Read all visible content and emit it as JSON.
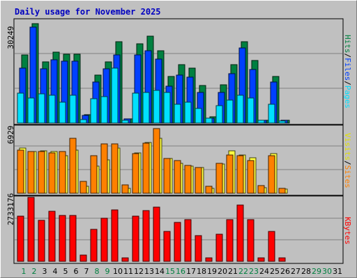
{
  "chart_data": [
    {
      "type": "bar",
      "title": "Daily usage for November 2025",
      "panel": "hits-files-pages",
      "categories": [
        "1",
        "2",
        "3",
        "4",
        "5",
        "6",
        "7",
        "8",
        "9",
        "10",
        "11",
        "12",
        "13",
        "14",
        "15",
        "16",
        "17",
        "18",
        "19",
        "20",
        "21",
        "22",
        "23",
        "24",
        "25",
        "26",
        "27",
        "28",
        "29",
        "30",
        "31"
      ],
      "weekend_days": [
        "1",
        "2",
        "8",
        "9",
        "15",
        "16",
        "22",
        "23",
        "29",
        "30"
      ],
      "ymax_label": "30249",
      "ylim": [
        0,
        30249
      ],
      "side_labels": [
        {
          "text": "Hits",
          "color": "#008040"
        },
        {
          "text": "/",
          "color": "#000000"
        },
        {
          "text": "Files",
          "color": "#0040ff"
        },
        {
          "text": "/",
          "color": "#000000"
        },
        {
          "text": "Pages",
          "color": "#00e0ff"
        }
      ],
      "series": [
        {
          "name": "Hits",
          "color": "#008040",
          "values": [
            20100,
            29300,
            18000,
            20900,
            20300,
            20300,
            2500,
            14100,
            18000,
            24000,
            1300,
            23200,
            25600,
            21200,
            13600,
            17100,
            16100,
            11100,
            1800,
            11300,
            17200,
            24000,
            18400,
            900,
            13600,
            900,
            0,
            0,
            0,
            0,
            0
          ]
        },
        {
          "name": "Files",
          "color": "#0040ff",
          "values": [
            16100,
            28300,
            16000,
            18600,
            18100,
            18100,
            2300,
            12100,
            16000,
            20000,
            1200,
            20100,
            21200,
            18900,
            10800,
            14100,
            13400,
            8900,
            1500,
            8900,
            14600,
            22100,
            15800,
            800,
            12100,
            800,
            0,
            0,
            0,
            0,
            0
          ]
        },
        {
          "name": "Pages",
          "color": "#00e0ff",
          "values": [
            8700,
            7400,
            8600,
            8100,
            6200,
            8100,
            1000,
            7100,
            7700,
            16200,
            800,
            8700,
            9000,
            9700,
            9000,
            5600,
            6100,
            4200,
            1500,
            5100,
            6700,
            8100,
            7400,
            800,
            5600,
            600,
            0,
            0,
            0,
            0,
            0
          ]
        }
      ]
    },
    {
      "type": "bar",
      "panel": "sites-visits",
      "categories": [
        "1",
        "2",
        "3",
        "4",
        "5",
        "6",
        "7",
        "8",
        "9",
        "10",
        "11",
        "12",
        "13",
        "14",
        "15",
        "16",
        "17",
        "18",
        "19",
        "20",
        "21",
        "22",
        "23",
        "24",
        "25",
        "26",
        "27",
        "28",
        "29",
        "30",
        "31"
      ],
      "ymax_label": "6929",
      "ylim": [
        0,
        6929
      ],
      "side_labels": [
        {
          "text": "Visits",
          "color": "#e0e000"
        },
        {
          "text": "/",
          "color": "#000000"
        },
        {
          "text": "Sites",
          "color": "#ff8000"
        }
      ],
      "series": [
        {
          "name": "Visits",
          "color": "#ffff40",
          "values": [
            4700,
            4300,
            4400,
            4300,
            3900,
            4500,
            700,
            2800,
            3500,
            4700,
            500,
            4200,
            5300,
            5700,
            3600,
            3100,
            2800,
            2700,
            500,
            3000,
            4400,
            4000,
            3700,
            600,
            4100,
            400,
            0,
            0,
            0,
            0,
            0
          ]
        },
        {
          "name": "Sites",
          "color": "#ff8000",
          "values": [
            4500,
            4300,
            4300,
            4200,
            4300,
            5700,
            1200,
            3900,
            5100,
            5100,
            900,
            4100,
            5200,
            6700,
            3600,
            3400,
            2900,
            2700,
            700,
            3100,
            4000,
            3900,
            3400,
            800,
            3900,
            500,
            0,
            0,
            0,
            0,
            0
          ]
        }
      ]
    },
    {
      "type": "bar",
      "panel": "kbytes",
      "categories": [
        "1",
        "2",
        "3",
        "4",
        "5",
        "6",
        "7",
        "8",
        "9",
        "10",
        "11",
        "12",
        "13",
        "14",
        "15",
        "16",
        "17",
        "18",
        "19",
        "20",
        "21",
        "22",
        "23",
        "24",
        "25",
        "26",
        "27",
        "28",
        "29",
        "30",
        "31"
      ],
      "ymax_label": "2733176",
      "ylim": [
        0,
        2733176
      ],
      "side_labels": [
        {
          "text": "KBytes",
          "color": "#ff0000"
        }
      ],
      "series": [
        {
          "name": "KBytes",
          "color": "#ff0000",
          "values": [
            1940000,
            2720000,
            1760000,
            2130000,
            1950000,
            1950000,
            280000,
            1360000,
            1850000,
            2190000,
            150000,
            1930000,
            2180000,
            2310000,
            1270000,
            1660000,
            1790000,
            1090000,
            140000,
            1170000,
            1790000,
            2400000,
            1790000,
            150000,
            1280000,
            150000,
            0,
            0,
            0,
            0,
            0
          ]
        }
      ]
    }
  ]
}
